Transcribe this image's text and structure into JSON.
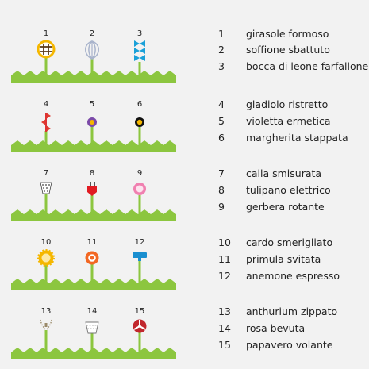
{
  "plants": [
    {
      "num": "1",
      "name": "girasole formoso",
      "icon": "sunflower-icon"
    },
    {
      "num": "2",
      "name": "soffione sbattuto",
      "icon": "whisk-icon"
    },
    {
      "num": "3",
      "name": "bocca di leone farfallone",
      "icon": "bowtie-stack-icon"
    },
    {
      "num": "4",
      "name": "gladiolo ristretto",
      "icon": "zigzag-flower-icon"
    },
    {
      "num": "5",
      "name": "violetta ermetica",
      "icon": "purple-blossom-icon"
    },
    {
      "num": "6",
      "name": "margherita stappata",
      "icon": "bottle-cap-icon"
    },
    {
      "num": "7",
      "name": "calla smisurata",
      "icon": "tape-measure-icon"
    },
    {
      "num": "8",
      "name": "tulipano elettrico",
      "icon": "electric-plug-icon"
    },
    {
      "num": "9",
      "name": "gerbera rotante",
      "icon": "pink-disc-icon"
    },
    {
      "num": "10",
      "name": "cardo smerigliato",
      "icon": "gear-flower-icon"
    },
    {
      "num": "11",
      "name": "primula svitata",
      "icon": "screw-head-icon"
    },
    {
      "num": "12",
      "name": "anemone espresso",
      "icon": "tamper-icon"
    },
    {
      "num": "13",
      "name": "anthurium zippato",
      "icon": "zipper-icon"
    },
    {
      "num": "14",
      "name": "rosa bevuta",
      "icon": "cup-icon"
    },
    {
      "num": "15",
      "name": "papavero volante",
      "icon": "propeller-icon"
    }
  ],
  "colors": {
    "background": "#f2f2f2",
    "grass": "#8cc63f",
    "stem": "#8cc63f",
    "text": "#222222"
  }
}
